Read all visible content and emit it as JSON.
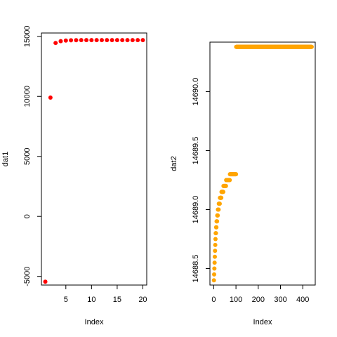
{
  "chart_data": [
    {
      "type": "scatter",
      "title": "",
      "xlabel": "Index",
      "ylabel": "dat1",
      "color": "#FF0000",
      "xlim": [
        0.24,
        20.76
      ],
      "ylim": [
        -5720,
        15280
      ],
      "xticks": [
        5,
        10,
        15,
        20
      ],
      "xtick_labels": [
        "5",
        "10",
        "15",
        "20"
      ],
      "yticks": [
        -5000,
        0,
        5000,
        10000,
        15000
      ],
      "ytick_labels": [
        "-5000",
        "0",
        "5000",
        "10000",
        "15000"
      ],
      "x": [
        1,
        2,
        3,
        4,
        5,
        6,
        7,
        8,
        9,
        10,
        11,
        12,
        13,
        14,
        15,
        16,
        17,
        18,
        19,
        20
      ],
      "y": [
        -5440,
        9900,
        14450,
        14600,
        14650,
        14670,
        14680,
        14685,
        14687,
        14688,
        14688.5,
        14689,
        14689.2,
        14689.4,
        14689.6,
        14689.8,
        14690,
        14690.1,
        14690.2,
        14690.3
      ]
    },
    {
      "type": "scatter",
      "title": "",
      "xlabel": "Index",
      "ylabel": "dat2",
      "color": "#FFA500",
      "xlim": [
        -17,
        456
      ],
      "ylim": [
        14688.36,
        14690.42
      ],
      "xticks": [
        0,
        100,
        200,
        300,
        400
      ],
      "xtick_labels": [
        "0",
        "100",
        "200",
        "300",
        "400"
      ],
      "yticks": [
        14688.5,
        14689.0,
        14689.5,
        14690.0
      ],
      "ytick_labels": [
        "14688.5",
        "14689.0",
        "14689.5",
        "14690.0"
      ],
      "groups": [
        {
          "x_start": 1,
          "x_end": 1,
          "y": 14688.4
        },
        {
          "x_start": 2,
          "x_end": 2,
          "y": 14688.45
        },
        {
          "x_start": 3,
          "x_end": 3,
          "y": 14688.5
        },
        {
          "x_start": 4,
          "x_end": 4,
          "y": 14688.55
        },
        {
          "x_start": 5,
          "x_end": 5,
          "y": 14688.6
        },
        {
          "x_start": 6,
          "x_end": 6,
          "y": 14688.65
        },
        {
          "x_start": 7,
          "x_end": 7,
          "y": 14688.7
        },
        {
          "x_start": 8,
          "x_end": 8,
          "y": 14688.75
        },
        {
          "x_start": 9,
          "x_end": 10,
          "y": 14688.8
        },
        {
          "x_start": 11,
          "x_end": 12,
          "y": 14688.85
        },
        {
          "x_start": 13,
          "x_end": 15,
          "y": 14688.9
        },
        {
          "x_start": 16,
          "x_end": 18,
          "y": 14688.95
        },
        {
          "x_start": 19,
          "x_end": 22,
          "y": 14689.0
        },
        {
          "x_start": 23,
          "x_end": 27,
          "y": 14689.05
        },
        {
          "x_start": 28,
          "x_end": 34,
          "y": 14689.1
        },
        {
          "x_start": 35,
          "x_end": 43,
          "y": 14689.15
        },
        {
          "x_start": 44,
          "x_end": 55,
          "y": 14689.2
        },
        {
          "x_start": 56,
          "x_end": 72,
          "y": 14689.25
        },
        {
          "x_start": 73,
          "x_end": 100,
          "y": 14689.3
        },
        {
          "x_start": 101,
          "x_end": 440,
          "y": 14690.38
        }
      ]
    }
  ]
}
